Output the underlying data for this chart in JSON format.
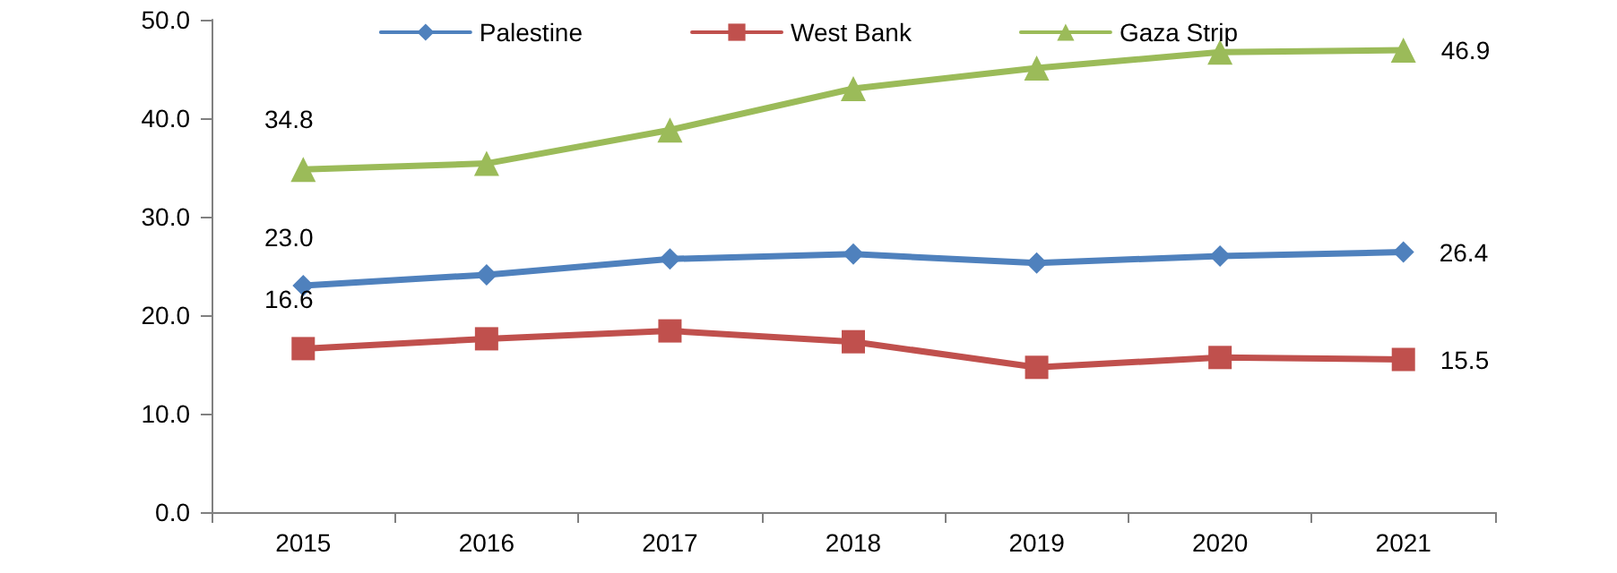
{
  "chart_data": {
    "type": "line",
    "categories": [
      "2015",
      "2016",
      "2017",
      "2018",
      "2019",
      "2020",
      "2021"
    ],
    "series": [
      {
        "name": "Palestine",
        "color": "#4f81bd",
        "marker": "diamond",
        "values": [
          23.0,
          24.1,
          25.7,
          26.2,
          25.3,
          26.0,
          26.4
        ],
        "value_labels": [
          "23.0",
          null,
          null,
          null,
          null,
          null,
          "26.4"
        ]
      },
      {
        "name": "West Bank",
        "color": "#c0504d",
        "marker": "square",
        "values": [
          16.6,
          17.6,
          18.4,
          17.3,
          14.7,
          15.7,
          15.5
        ],
        "value_labels": [
          "16.6",
          null,
          null,
          null,
          null,
          null,
          "15.5"
        ]
      },
      {
        "name": "Gaza Strip",
        "color": "#9bbb59",
        "marker": "triangle",
        "values": [
          34.8,
          35.4,
          38.8,
          43.0,
          45.1,
          46.7,
          46.9
        ],
        "value_labels": [
          "34.8",
          null,
          null,
          null,
          null,
          null,
          "46.9"
        ]
      }
    ],
    "ylim": [
      0,
      50
    ],
    "yticks": [
      {
        "value": 0,
        "label": "0.0"
      },
      {
        "value": 10,
        "label": "10.0"
      },
      {
        "value": 20,
        "label": "20.0"
      },
      {
        "value": 30,
        "label": "30.0"
      },
      {
        "value": 40,
        "label": "40.0"
      },
      {
        "value": 50,
        "label": "50.0"
      }
    ],
    "grid": false,
    "legend": "top",
    "line_style": "solid"
  }
}
